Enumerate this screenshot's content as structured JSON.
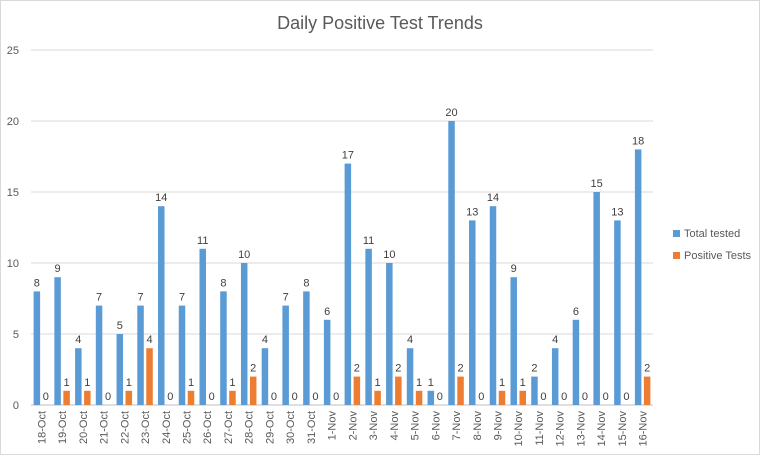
{
  "chart_data": {
    "type": "bar",
    "title": "Daily Positive Test Trends",
    "xlabel": "",
    "ylabel": "",
    "ylim": [
      0,
      25
    ],
    "yticks": [
      0,
      5,
      10,
      15,
      20,
      25
    ],
    "grid": true,
    "legend_position": "right",
    "categories": [
      "18-Oct",
      "19-Oct",
      "20-Oct",
      "21-Oct",
      "22-Oct",
      "23-Oct",
      "24-Oct",
      "25-Oct",
      "26-Oct",
      "27-Oct",
      "28-Oct",
      "29-Oct",
      "30-Oct",
      "31-Oct",
      "1-Nov",
      "2-Nov",
      "3-Nov",
      "4-Nov",
      "5-Nov",
      "6-Nov",
      "7-Nov",
      "8-Nov",
      "9-Nov",
      "10-Nov",
      "11-Nov",
      "12-Nov",
      "13-Nov",
      "14-Nov",
      "15-Nov",
      "16-Nov"
    ],
    "series": [
      {
        "name": "Total tested",
        "color": "#5b9bd5",
        "values": [
          8,
          9,
          4,
          7,
          5,
          7,
          14,
          7,
          11,
          8,
          10,
          4,
          7,
          8,
          6,
          17,
          11,
          10,
          4,
          1,
          20,
          13,
          14,
          9,
          2,
          4,
          6,
          15,
          13,
          18
        ]
      },
      {
        "name": "Positive Tests",
        "color": "#ed7d31",
        "values": [
          0,
          1,
          1,
          0,
          1,
          4,
          0,
          1,
          0,
          1,
          2,
          0,
          0,
          0,
          0,
          2,
          1,
          2,
          1,
          0,
          2,
          0,
          1,
          1,
          0,
          0,
          0,
          0,
          0,
          2
        ]
      }
    ]
  }
}
